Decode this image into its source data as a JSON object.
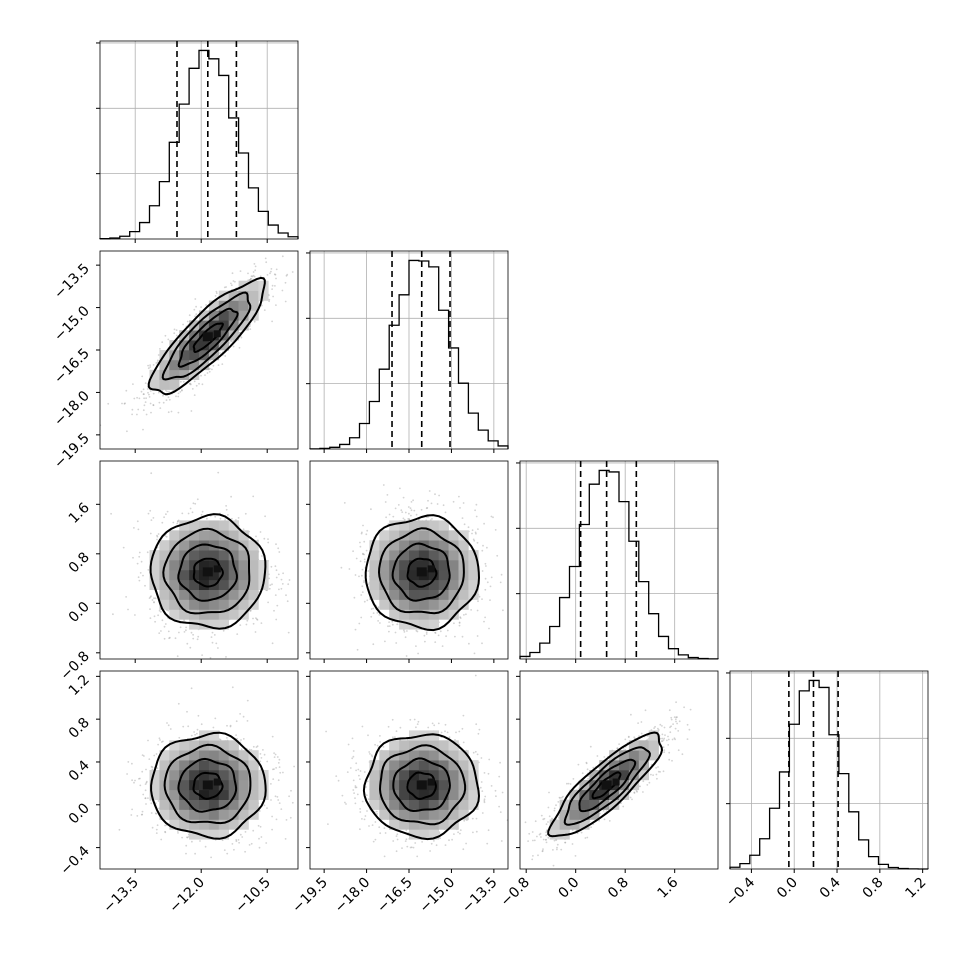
{
  "chart_data": {
    "type": "corner",
    "title": "",
    "parameters": [
      {
        "name": "",
        "range": [
          -14.3,
          -9.8
        ],
        "ticks": [
          -13.5,
          -12.0,
          -10.5
        ],
        "tick_labels": [
          "−13.5",
          "−12.0",
          "−10.5"
        ],
        "mean": -11.85,
        "sigma": 0.65,
        "quantiles": [
          -12.55,
          -11.85,
          -11.2
        ]
      },
      {
        "name": "",
        "range": [
          -20.0,
          -13.0
        ],
        "ticks": [
          -19.5,
          -18.0,
          -16.5,
          -15.0,
          -13.5
        ],
        "tick_labels": [
          "−19.5",
          "−18.0",
          "−16.5",
          "−15.0",
          "−13.5"
        ],
        "mean": -16.05,
        "sigma": 1.0,
        "quantiles": [
          -17.1,
          -16.05,
          -15.05
        ]
      },
      {
        "name": "",
        "range": [
          -0.9,
          2.3
        ],
        "ticks": [
          -0.8,
          0.0,
          0.8,
          1.6
        ],
        "tick_labels": [
          "−0.8",
          "0.0",
          "0.8",
          "1.6"
        ],
        "mean": 0.5,
        "sigma": 0.45,
        "quantiles": [
          0.08,
          0.5,
          0.98
        ]
      },
      {
        "name": "",
        "range": [
          -0.6,
          1.25
        ],
        "ticks": [
          -0.4,
          0.0,
          0.4,
          0.8,
          1.2
        ],
        "tick_labels": [
          "−0.4",
          "0.0",
          "0.4",
          "0.8",
          "1.2"
        ],
        "mean": 0.18,
        "sigma": 0.24,
        "quantiles": [
          -0.05,
          0.18,
          0.41
        ]
      }
    ],
    "correlations": [
      [
        1.0,
        0.85,
        0.0,
        0.0
      ],
      [
        0.85,
        1.0,
        0.0,
        0.0
      ],
      [
        0.0,
        0.0,
        1.0,
        0.85
      ],
      [
        0.0,
        0.0,
        0.85,
        1.0
      ]
    ],
    "histogram_bins": 20,
    "diagonal_ytick_count": 3,
    "contour_levels_sigma": [
      0.5,
      1.0,
      1.5,
      2.0
    ],
    "grid": true,
    "legend": "none"
  },
  "colors": {
    "line": "#000000",
    "points": "#9e9e9e",
    "grid": "#b0b0b0",
    "density_dark": "#1a1a1a",
    "density_light": "#f2f2f2"
  }
}
